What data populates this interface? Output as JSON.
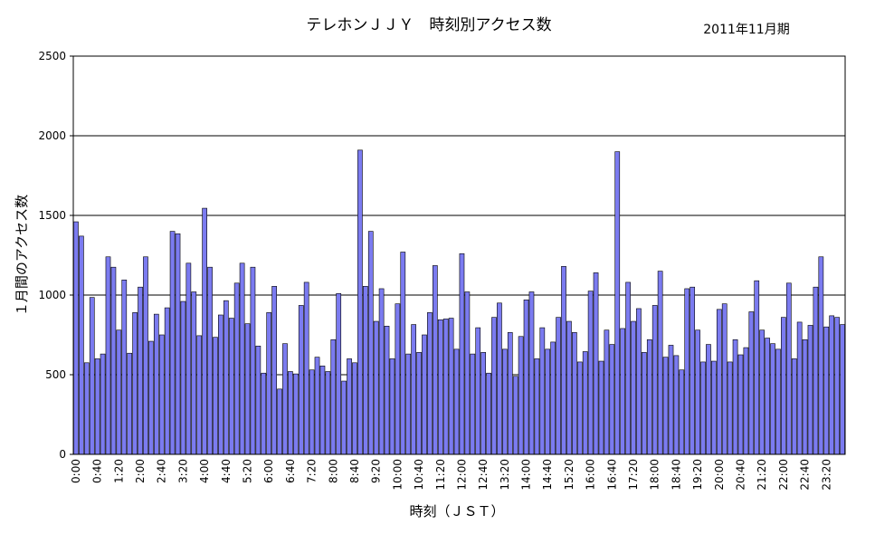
{
  "chart_data": {
    "type": "bar",
    "title": "テレホンＪＪＹ　時刻別アクセス数",
    "period": "2011年11月期",
    "xlabel": "時刻（ＪＳＴ）",
    "ylabel": "１月間のアクセス数",
    "ylim": [
      0,
      2500
    ],
    "yticks": [
      0,
      500,
      1000,
      1500,
      2000,
      2500
    ],
    "grid": true,
    "bar_color": "#7b7bf0",
    "bar_stroke": "#000000",
    "interval_minutes": 10,
    "tick_labels": [
      "0:00",
      "0:40",
      "1:20",
      "2:00",
      "2:40",
      "3:20",
      "4:00",
      "4:40",
      "5:20",
      "6:00",
      "6:40",
      "7:20",
      "8:00",
      "8:40",
      "9:20",
      "10:00",
      "10:40",
      "11:20",
      "12:00",
      "12:40",
      "13:20",
      "14:00",
      "14:40",
      "15:20",
      "16:00",
      "16:40",
      "17:20",
      "18:00",
      "18:40",
      "19:20",
      "20:00",
      "20:40",
      "21:20",
      "22:00",
      "22:40",
      "23:20"
    ],
    "values": [
      1460,
      1370,
      575,
      985,
      600,
      630,
      1240,
      1175,
      780,
      1095,
      635,
      890,
      1050,
      1240,
      710,
      880,
      750,
      920,
      1400,
      1385,
      960,
      1200,
      1020,
      745,
      1545,
      1175,
      735,
      875,
      965,
      855,
      1075,
      1200,
      820,
      1175,
      680,
      510,
      890,
      1055,
      410,
      695,
      520,
      505,
      935,
      1080,
      530,
      610,
      555,
      520,
      720,
      1010,
      460,
      600,
      575,
      1910,
      1055,
      1400,
      835,
      1040,
      805,
      600,
      945,
      1270,
      630,
      815,
      640,
      750,
      890,
      1185,
      845,
      850,
      855,
      660,
      1260,
      1020,
      630,
      795,
      640,
      510,
      860,
      950,
      660,
      765,
      490,
      740,
      970,
      1020,
      600,
      795,
      660,
      705,
      860,
      1180,
      835,
      765,
      580,
      645,
      1025,
      1140,
      585,
      780,
      690,
      1900,
      790,
      1080,
      835,
      915,
      640,
      720,
      935,
      1150,
      610,
      685,
      620,
      530,
      1040,
      1050,
      780,
      580,
      690,
      585,
      910,
      945,
      580,
      720,
      625,
      670,
      895,
      1090,
      780,
      730,
      695,
      660,
      860,
      1075,
      600,
      830,
      720,
      810,
      1050,
      1240,
      800,
      870,
      860,
      815
    ]
  }
}
